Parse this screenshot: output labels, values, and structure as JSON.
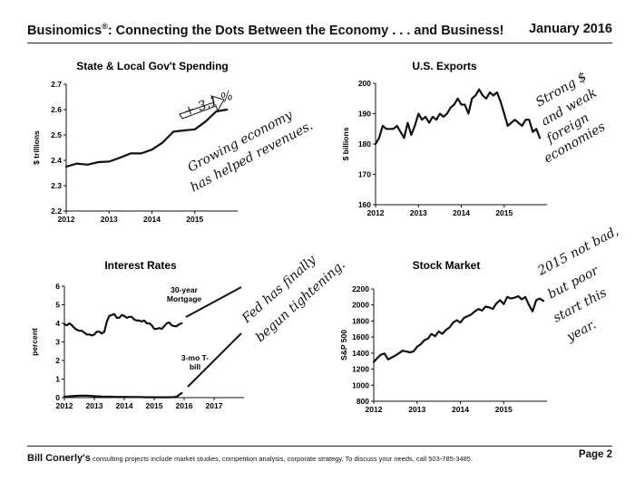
{
  "header": {
    "title": "Businomics",
    "title_mark": "®",
    "title_rest": ": Connecting the Dots Between the Economy . . . and Business!",
    "month": "January 2016"
  },
  "footer": {
    "name": "Bill Conerly's",
    "description": " consulting projects include market studies, competition analysis, corporate strategy.  To discuss your needs, call 503-785-3485.",
    "page": "Page 2"
  },
  "chart_data": [
    {
      "id": "spending",
      "type": "line",
      "title": "State & Local Gov't Spending",
      "ylabel": "$ trillions",
      "xlabel": "",
      "xlim": [
        2012.0,
        2016.0
      ],
      "ylim": [
        2.2,
        2.7
      ],
      "xticks": [
        2012,
        2013,
        2014,
        2015
      ],
      "yticks": [
        2.2,
        2.3,
        2.4,
        2.5,
        2.6,
        2.7
      ],
      "ytick_labels": [
        "2.2",
        "2.3",
        "2.4",
        "2.5",
        "2.6",
        "2.7"
      ],
      "series": [
        {
          "x": [
            2012.0,
            2012.25,
            2012.5,
            2012.75,
            2013.0,
            2013.25,
            2013.5,
            2013.75,
            2014.0,
            2014.25,
            2014.5,
            2014.75,
            2015.0,
            2015.25,
            2015.5,
            2015.75
          ],
          "values": [
            2.375,
            2.387,
            2.383,
            2.393,
            2.395,
            2.41,
            2.427,
            2.427,
            2.442,
            2.47,
            2.513,
            2.518,
            2.522,
            2.553,
            2.593,
            2.6
          ]
        }
      ],
      "annotations": [
        {
          "text": "+ 3.1 %",
          "kind": "arrow"
        },
        {
          "text": "Growing economy",
          "kind": "handwriting"
        },
        {
          "text": "has helped revenues.",
          "kind": "handwriting"
        }
      ]
    },
    {
      "id": "exports",
      "type": "line",
      "title": "U.S. Exports",
      "ylabel": "$ billions",
      "xlabel": "",
      "xlim": [
        2012.0,
        2016.0
      ],
      "ylim": [
        160,
        200
      ],
      "xticks": [
        2012,
        2013,
        2014,
        2015
      ],
      "yticks": [
        160,
        170,
        180,
        190,
        200
      ],
      "ytick_labels": [
        "160",
        "170",
        "180",
        "190",
        "200"
      ],
      "series": [
        {
          "x": [
            2012.0,
            2012.083,
            2012.167,
            2012.25,
            2012.333,
            2012.417,
            2012.5,
            2012.583,
            2012.667,
            2012.75,
            2012.833,
            2012.917,
            2013.0,
            2013.083,
            2013.167,
            2013.25,
            2013.333,
            2013.417,
            2013.5,
            2013.583,
            2013.667,
            2013.75,
            2013.833,
            2013.917,
            2014.0,
            2014.083,
            2014.167,
            2014.25,
            2014.333,
            2014.417,
            2014.5,
            2014.583,
            2014.667,
            2014.75,
            2014.833,
            2014.917,
            2015.0,
            2015.083,
            2015.167,
            2015.25,
            2015.333,
            2015.417,
            2015.5,
            2015.583,
            2015.667,
            2015.75,
            2015.833
          ],
          "values": [
            180,
            182,
            186,
            185,
            185,
            185,
            186,
            184,
            182,
            187,
            183,
            186,
            190,
            188,
            189,
            187,
            189,
            188,
            190,
            189,
            190,
            192,
            193,
            195,
            193,
            193,
            190,
            195,
            196,
            198,
            196,
            195,
            197,
            196,
            197,
            194,
            190,
            186,
            187,
            188,
            187,
            186,
            188,
            188,
            184,
            185,
            182
          ]
        }
      ],
      "annotations": [
        {
          "text": "Strong $",
          "kind": "handwriting"
        },
        {
          "text": "and weak",
          "kind": "handwriting"
        },
        {
          "text": "foreign",
          "kind": "handwriting"
        },
        {
          "text": "economies",
          "kind": "handwriting"
        }
      ]
    },
    {
      "id": "rates",
      "type": "line",
      "title": "Interest Rates",
      "ylabel": "percent",
      "xlabel": "",
      "xlim": [
        2012.0,
        2018.0
      ],
      "ylim": [
        0,
        6
      ],
      "xticks": [
        2012,
        2013,
        2014,
        2015,
        2016,
        2017
      ],
      "yticks": [
        0,
        1,
        2,
        3,
        4,
        5,
        6
      ],
      "ytick_labels": [
        "0",
        "1",
        "2",
        "3",
        "4",
        "5",
        "6"
      ],
      "series": [
        {
          "name": "30-year Mortgage",
          "x": [
            2012.0,
            2012.083,
            2012.167,
            2012.25,
            2012.333,
            2012.417,
            2012.5,
            2012.583,
            2012.667,
            2012.75,
            2012.833,
            2012.917,
            2013.0,
            2013.083,
            2013.167,
            2013.25,
            2013.333,
            2013.417,
            2013.5,
            2013.583,
            2013.667,
            2013.75,
            2013.833,
            2013.917,
            2014.0,
            2014.083,
            2014.167,
            2014.25,
            2014.333,
            2014.417,
            2014.5,
            2014.583,
            2014.667,
            2014.75,
            2014.833,
            2014.917,
            2015.0,
            2015.083,
            2015.167,
            2015.25,
            2015.333,
            2015.417,
            2015.5,
            2015.583,
            2015.667,
            2015.75,
            2015.833,
            2015.917
          ],
          "values": [
            3.95,
            3.9,
            4.0,
            3.9,
            3.75,
            3.65,
            3.6,
            3.6,
            3.5,
            3.4,
            3.4,
            3.35,
            3.4,
            3.55,
            3.55,
            3.45,
            3.55,
            4.1,
            4.4,
            4.45,
            4.5,
            4.3,
            4.3,
            4.45,
            4.4,
            4.3,
            4.35,
            4.35,
            4.2,
            4.15,
            4.15,
            4.1,
            4.15,
            4.0,
            4.0,
            3.9,
            3.7,
            3.7,
            3.75,
            3.7,
            3.85,
            4.0,
            4.05,
            3.9,
            3.85,
            3.85,
            3.95,
            4.0
          ]
        },
        {
          "name": "3-mo T-bill",
          "x": [
            2012.0,
            2012.25,
            2012.5,
            2012.75,
            2013.0,
            2013.25,
            2013.5,
            2013.75,
            2014.0,
            2014.25,
            2014.5,
            2014.75,
            2015.0,
            2015.25,
            2015.5,
            2015.667,
            2015.75,
            2015.833,
            2015.917
          ],
          "values": [
            0.05,
            0.08,
            0.1,
            0.1,
            0.08,
            0.06,
            0.05,
            0.04,
            0.04,
            0.03,
            0.03,
            0.02,
            0.02,
            0.02,
            0.02,
            0.03,
            0.05,
            0.15,
            0.25
          ]
        }
      ],
      "labels": {
        "mortgage": [
          "30-year",
          "Mortgage"
        ],
        "tbill": [
          "3-mo T-",
          "bill"
        ]
      },
      "annotations": [
        {
          "text": "Fed has finally",
          "kind": "handwriting"
        },
        {
          "text": "begun tightening.",
          "kind": "handwriting"
        }
      ]
    },
    {
      "id": "stocks",
      "type": "line",
      "title": "Stock Market",
      "ylabel": "S&P 500",
      "xlabel": "",
      "xlim": [
        2012.0,
        2016.0
      ],
      "ylim": [
        800,
        2200
      ],
      "xticks": [
        2012,
        2013,
        2014,
        2015
      ],
      "yticks": [
        800,
        1000,
        1200,
        1400,
        1600,
        1800,
        2000,
        2200
      ],
      "ytick_labels": [
        "800",
        "1000",
        "1200",
        "1400",
        "1600",
        "1800",
        "2000",
        "2200"
      ],
      "series": [
        {
          "x": [
            2012.0,
            2012.083,
            2012.167,
            2012.25,
            2012.333,
            2012.417,
            2012.5,
            2012.583,
            2012.667,
            2012.75,
            2012.833,
            2012.917,
            2013.0,
            2013.083,
            2013.167,
            2013.25,
            2013.333,
            2013.417,
            2013.5,
            2013.583,
            2013.667,
            2013.75,
            2013.833,
            2013.917,
            2014.0,
            2014.083,
            2014.167,
            2014.25,
            2014.333,
            2014.417,
            2014.5,
            2014.583,
            2014.667,
            2014.75,
            2014.833,
            2014.917,
            2015.0,
            2015.083,
            2015.167,
            2015.25,
            2015.333,
            2015.417,
            2015.5,
            2015.583,
            2015.667,
            2015.75,
            2015.833,
            2015.917
          ],
          "values": [
            1290,
            1340,
            1380,
            1395,
            1320,
            1345,
            1370,
            1400,
            1430,
            1420,
            1410,
            1420,
            1480,
            1510,
            1560,
            1580,
            1640,
            1610,
            1670,
            1640,
            1690,
            1720,
            1780,
            1810,
            1780,
            1840,
            1860,
            1880,
            1920,
            1950,
            1930,
            1980,
            1970,
            1950,
            2020,
            2060,
            2010,
            2100,
            2080,
            2090,
            2110,
            2070,
            2100,
            2000,
            1920,
            2060,
            2080,
            2050
          ]
        }
      ],
      "annotations": [
        {
          "text": "2015 not bad,",
          "kind": "handwriting"
        },
        {
          "text": "but poor",
          "kind": "handwriting"
        },
        {
          "text": "start this",
          "kind": "handwriting"
        },
        {
          "text": "year.",
          "kind": "handwriting"
        }
      ]
    }
  ]
}
